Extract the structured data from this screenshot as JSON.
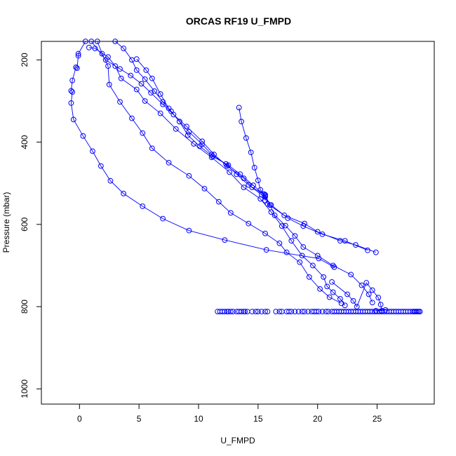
{
  "chart_data": {
    "type": "line",
    "title": "ORCAS RF19 U_FMPD",
    "xlabel": "U_FMPD",
    "ylabel": "Pressure (mbar)",
    "xlim": [
      -3.2,
      29.8
    ],
    "ylim": [
      1037,
      155
    ],
    "y_reversed": true,
    "x_ticks": [
      0,
      5,
      10,
      15,
      20,
      25
    ],
    "y_ticks": [
      200,
      400,
      600,
      800,
      1000
    ],
    "grid": false,
    "legend": "none",
    "marker": "open-circle",
    "color": "#0000ff",
    "series": [
      {
        "values": [
          [
            0.5,
            155
          ],
          [
            -0.1,
            185
          ],
          [
            -0.1,
            190
          ],
          [
            -0.2,
            220
          ],
          [
            -0.3,
            218
          ],
          [
            -0.6,
            250
          ],
          [
            -0.7,
            275
          ],
          [
            -0.6,
            278
          ],
          [
            -0.7,
            305
          ],
          [
            -0.5,
            345
          ],
          [
            0.3,
            385
          ],
          [
            1.1,
            422
          ],
          [
            1.8,
            458
          ],
          [
            2.6,
            494
          ],
          [
            3.7,
            525
          ],
          [
            5.3,
            556
          ],
          [
            7.0,
            586
          ],
          [
            9.2,
            615
          ],
          [
            12.2,
            638
          ],
          [
            15.7,
            662
          ],
          [
            20.1,
            683
          ],
          [
            21.4,
            704
          ]
        ]
      },
      {
        "values": [
          [
            1.5,
            155
          ],
          [
            1.9,
            185
          ],
          [
            2.4,
            215
          ],
          [
            2.5,
            260
          ],
          [
            3.4,
            302
          ],
          [
            4.4,
            342
          ],
          [
            5.3,
            378
          ],
          [
            6.1,
            415
          ],
          [
            7.5,
            450
          ],
          [
            9.2,
            482
          ],
          [
            10.5,
            513
          ],
          [
            11.7,
            545
          ],
          [
            12.7,
            572
          ],
          [
            14.2,
            598
          ],
          [
            15.6,
            622
          ],
          [
            16.8,
            646
          ],
          [
            17.4,
            668
          ],
          [
            18.5,
            692
          ],
          [
            19.3,
            728
          ],
          [
            20.2,
            757
          ],
          [
            21.0,
            777
          ],
          [
            22.0,
            792
          ]
        ]
      },
      {
        "values": [
          [
            0.8,
            170
          ],
          [
            1.3,
            172
          ],
          [
            2.4,
            193
          ],
          [
            3.0,
            215
          ],
          [
            3.5,
            245
          ],
          [
            4.8,
            272
          ],
          [
            5.5,
            300
          ],
          [
            6.8,
            330
          ],
          [
            8.1,
            368
          ],
          [
            9.6,
            404
          ],
          [
            11.1,
            437
          ],
          [
            12.6,
            473
          ],
          [
            13.8,
            510
          ],
          [
            15.2,
            538
          ],
          [
            16.1,
            570
          ],
          [
            17.0,
            604
          ],
          [
            17.8,
            640
          ],
          [
            18.7,
            676
          ],
          [
            19.6,
            700
          ],
          [
            20.5,
            728
          ],
          [
            20.8,
            751
          ],
          [
            21.3,
            765
          ],
          [
            21.9,
            781
          ],
          [
            22.3,
            797
          ]
        ]
      },
      {
        "values": [
          [
            1.0,
            155
          ],
          [
            2.2,
            200
          ],
          [
            3.4,
            222
          ],
          [
            4.3,
            238
          ],
          [
            5.2,
            258
          ],
          [
            6.0,
            280
          ],
          [
            7.0,
            308
          ],
          [
            7.9,
            333
          ],
          [
            9.0,
            362
          ],
          [
            10.3,
            398
          ],
          [
            11.3,
            430
          ],
          [
            12.4,
            458
          ],
          [
            13.8,
            488
          ],
          [
            14.5,
            510
          ],
          [
            15.6,
            528
          ],
          [
            16.0,
            553
          ],
          [
            16.4,
            578
          ],
          [
            17.3,
            603
          ],
          [
            18.1,
            628
          ],
          [
            18.8,
            655
          ],
          [
            20.0,
            676
          ],
          [
            21.3,
            700
          ],
          [
            22.8,
            722
          ],
          [
            23.7,
            748
          ],
          [
            24.3,
            770
          ],
          [
            24.6,
            790
          ]
        ]
      },
      {
        "values": [
          [
            3.0,
            155
          ],
          [
            3.7,
            172
          ],
          [
            4.4,
            200
          ],
          [
            4.8,
            225
          ],
          [
            5.5,
            247
          ],
          [
            6.3,
            276
          ],
          [
            7.0,
            302
          ],
          [
            7.7,
            325
          ],
          [
            8.4,
            350
          ],
          [
            9.2,
            375
          ],
          [
            10.3,
            405
          ],
          [
            11.1,
            430
          ],
          [
            12.3,
            453
          ],
          [
            13.2,
            478
          ],
          [
            14.2,
            504
          ],
          [
            15.3,
            528
          ],
          [
            16.1,
            553
          ],
          [
            17.5,
            585
          ],
          [
            18.8,
            604
          ],
          [
            20.4,
            624
          ],
          [
            22.3,
            640
          ],
          [
            24.2,
            663
          ]
        ]
      },
      {
        "values": [
          [
            4.8,
            198
          ],
          [
            5.6,
            225
          ],
          [
            6.1,
            245
          ],
          [
            6.8,
            283
          ],
          [
            7.5,
            318
          ],
          [
            8.4,
            350
          ],
          [
            9.1,
            383
          ],
          [
            10.1,
            410
          ],
          [
            11.2,
            435
          ],
          [
            12.5,
            456
          ],
          [
            13.5,
            478
          ],
          [
            14.6,
            505
          ],
          [
            15.6,
            530
          ],
          [
            15.8,
            550
          ],
          [
            17.2,
            578
          ],
          [
            18.9,
            598
          ],
          [
            20.0,
            618
          ],
          [
            21.9,
            640
          ],
          [
            23.2,
            650
          ],
          [
            24.9,
            668
          ]
        ]
      },
      {
        "values": [
          [
            13.4,
            316
          ],
          [
            13.6,
            350
          ],
          [
            14.0,
            390
          ],
          [
            14.4,
            425
          ],
          [
            14.7,
            462
          ],
          [
            15.0,
            493
          ],
          [
            15.2,
            516
          ],
          [
            15.5,
            526
          ],
          [
            15.6,
            533
          ],
          [
            15.6,
            542
          ]
        ]
      },
      {
        "values": [
          [
            21.2,
            740
          ],
          [
            22.5,
            770
          ],
          [
            23.0,
            786
          ],
          [
            23.3,
            800
          ],
          [
            24.1,
            742
          ],
          [
            24.6,
            760
          ],
          [
            25.1,
            778
          ],
          [
            25.3,
            795
          ],
          [
            25.4,
            810
          ],
          [
            24.9,
            810
          ],
          [
            25.7,
            808
          ]
        ]
      }
    ],
    "scatter_row": {
      "y": 812,
      "x": [
        11.6,
        11.8,
        12.0,
        12.2,
        12.4,
        12.5,
        12.7,
        12.9,
        13.2,
        13.4,
        13.6,
        13.8,
        13.9,
        14.1,
        14.5,
        14.8,
        15.0,
        15.3,
        15.6,
        15.8,
        16.5,
        16.8,
        17.0,
        17.4,
        17.6,
        17.8,
        18.1,
        18.4,
        18.7,
        18.9,
        19.2,
        19.5,
        19.7,
        19.9,
        20.1,
        20.4,
        20.7,
        20.9,
        21.2,
        21.4,
        21.6,
        21.8,
        22.0,
        22.2,
        22.4,
        22.6,
        22.8,
        23.0,
        23.2,
        23.4,
        23.6,
        23.8,
        24.0,
        24.2,
        24.4,
        24.6,
        24.8,
        25.0,
        25.2,
        25.4,
        25.6,
        25.8,
        26.0,
        26.2,
        26.4,
        26.6,
        26.8,
        27.0,
        27.2,
        27.4,
        27.6,
        27.8,
        28.0,
        28.1,
        28.2,
        28.3,
        28.4,
        28.5,
        28.6
      ]
    }
  }
}
